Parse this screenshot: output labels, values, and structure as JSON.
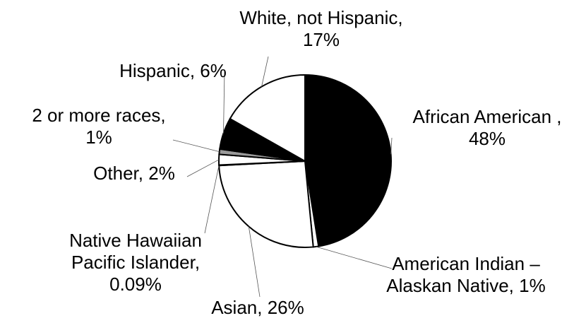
{
  "chart_data": {
    "type": "pie",
    "categories": [
      "African American ,",
      "American Indian – Alaskan Native,",
      "Asian,",
      "Native Hawaiian Pacific Islander,",
      "Other,",
      "2 or more races,",
      "Hispanic,",
      "White, not Hispanic,"
    ],
    "values": [
      48,
      1,
      26,
      0.09,
      2,
      1,
      6,
      17
    ],
    "value_labels": [
      "48%",
      "1%",
      "26%",
      "0.09%",
      "2%",
      "1%",
      "6%",
      "17%"
    ],
    "colors": [
      "#000000",
      "#ffffff",
      "#ffffff",
      "#ffffff",
      "#ffffff",
      "#9a9a9a",
      "#000000",
      "#ffffff"
    ]
  }
}
